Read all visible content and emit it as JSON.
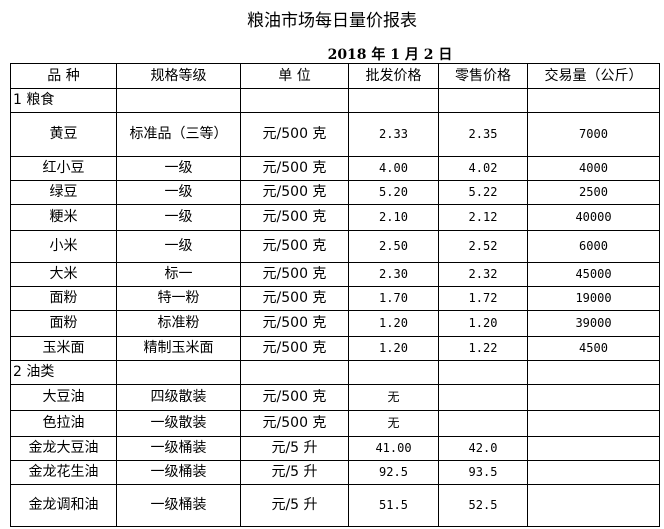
{
  "title": "粮油市场每日量价报表",
  "date": "2018 年 1 月 2 日",
  "headers": [
    "品 种",
    "规格等级",
    "单 位",
    "批发价格",
    "零售价格",
    "交易量（公斤）"
  ],
  "rows": [
    {
      "name": "1 粮食",
      "spec": "",
      "unit": "",
      "wholesale": "",
      "retail": "",
      "volume": "",
      "section": true
    },
    {
      "name": "黄豆",
      "spec": "标准品（三等）",
      "unit": "元/500 克",
      "wholesale": "2.33",
      "retail": "2.35",
      "volume": "7000"
    },
    {
      "name": "红小豆",
      "spec": "一级",
      "unit": "元/500 克",
      "wholesale": "4.00",
      "retail": "4.02",
      "volume": "4000"
    },
    {
      "name": "绿豆",
      "spec": "一级",
      "unit": "元/500 克",
      "wholesale": "5.20",
      "retail": "5.22",
      "volume": "2500"
    },
    {
      "name": "粳米",
      "spec": "一级",
      "unit": "元/500 克",
      "wholesale": "2.10",
      "retail": "2.12",
      "volume": "40000"
    },
    {
      "name": "小米",
      "spec": "一级",
      "unit": "元/500 克",
      "wholesale": "2.50",
      "retail": "2.52",
      "volume": "6000"
    },
    {
      "name": "大米",
      "spec": "标一",
      "unit": "元/500 克",
      "wholesale": "2.30",
      "retail": "2.32",
      "volume": "45000"
    },
    {
      "name": "面粉",
      "spec": "特一粉",
      "unit": "元/500 克",
      "wholesale": "1.70",
      "retail": "1.72",
      "volume": "19000"
    },
    {
      "name": "面粉",
      "spec": "标准粉",
      "unit": "元/500 克",
      "wholesale": "1.20",
      "retail": "1.20",
      "volume": "39000"
    },
    {
      "name": "玉米面",
      "spec": "精制玉米面",
      "unit": "元/500 克",
      "wholesale": "1.20",
      "retail": "1.22",
      "volume": "4500"
    },
    {
      "name": "2 油类",
      "spec": "",
      "unit": "",
      "wholesale": "",
      "retail": "",
      "volume": "",
      "section": true
    },
    {
      "name": "大豆油",
      "spec": "四级散装",
      "unit": "元/500 克",
      "wholesale": "无",
      "retail": "",
      "volume": ""
    },
    {
      "name": "色拉油",
      "spec": "一级散装",
      "unit": "元/500 克",
      "wholesale": "无",
      "retail": "",
      "volume": ""
    },
    {
      "name": "金龙大豆油",
      "spec": "一级桶装",
      "unit": "元/5 升",
      "wholesale": "41.00",
      "retail": "42.0",
      "volume": ""
    },
    {
      "name": "金龙花生油",
      "spec": "一级桶装",
      "unit": "元/5 升",
      "wholesale": "92.5",
      "retail": "93.5",
      "volume": ""
    },
    {
      "name": "金龙调和油",
      "spec": "一级桶装",
      "unit": "元/5 升",
      "wholesale": "51.5",
      "retail": "52.5",
      "volume": ""
    }
  ]
}
